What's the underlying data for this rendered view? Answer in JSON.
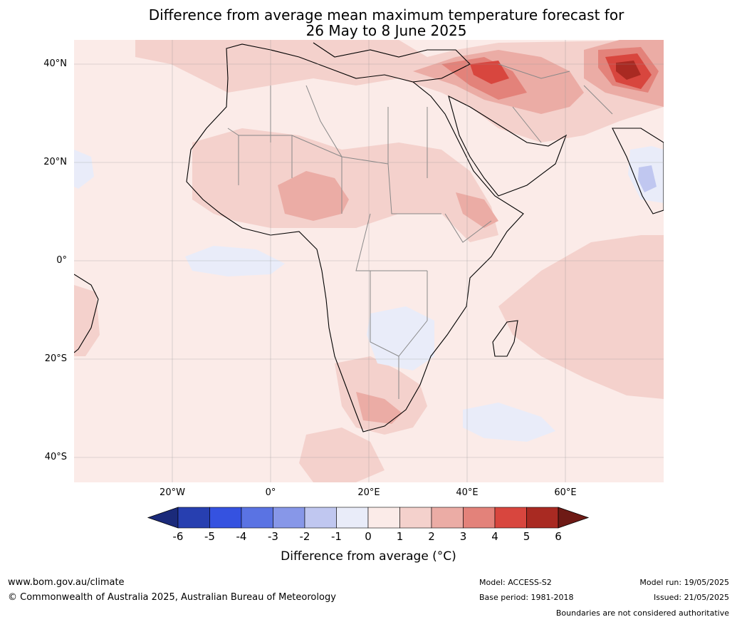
{
  "title": {
    "line1": "Difference from average mean maximum temperature forecast for",
    "line2": "26 May to 8 June 2025"
  },
  "map": {
    "lat_labels": [
      "40°N",
      "20°N",
      "0°",
      "20°S",
      "40°S"
    ],
    "lon_labels": [
      "20°W",
      "0°",
      "20°E",
      "40°E",
      "60°E"
    ],
    "region": "Africa and Middle East",
    "extent": {
      "lon": [
        -40,
        80
      ],
      "lat": [
        -45,
        45
      ]
    }
  },
  "colorbar": {
    "ticks": [
      "-6",
      "-5",
      "-4",
      "-3",
      "-2",
      "-1",
      "0",
      "1",
      "2",
      "3",
      "4",
      "5",
      "6"
    ],
    "label": "Difference from average (°C)",
    "colors": [
      "#1b2a7a",
      "#273fb0",
      "#3552e0",
      "#5a73e3",
      "#8797e8",
      "#c0c7f0",
      "#e9ecf9",
      "#fbebe8",
      "#f4d1cc",
      "#ebaca5",
      "#e3827a",
      "#d8463e",
      "#a92a22",
      "#6e1a15"
    ]
  },
  "footer": {
    "url": "www.bom.gov.au/climate",
    "copyright": "© Commonwealth of Australia 2025, Australian Bureau of Meteorology",
    "model": "Model: ACCESS-S2",
    "base_period": "Base period: 1981-2018",
    "model_run": "Model run: 19/05/2025",
    "issued": "Issued: 21/05/2025",
    "disclaimer": "Boundaries are not considered authoritative"
  }
}
